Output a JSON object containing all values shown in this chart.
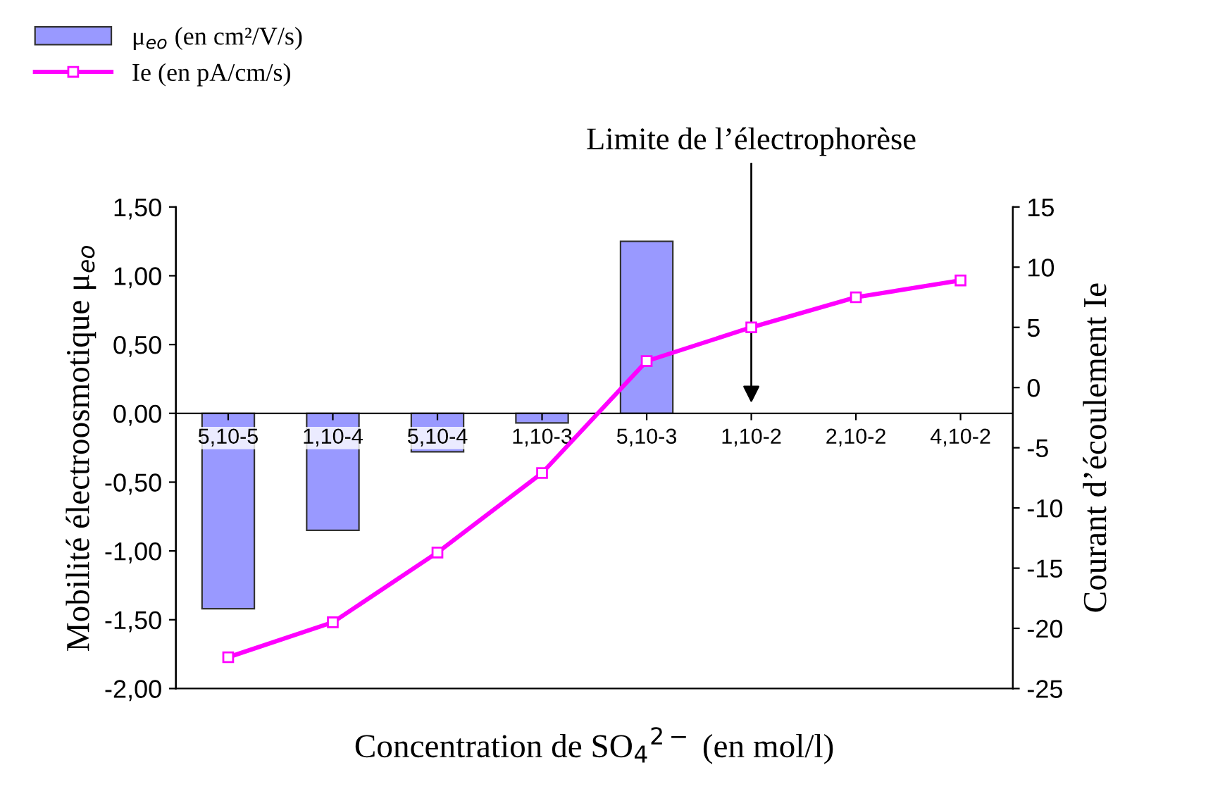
{
  "chart_data": {
    "type": "bar",
    "xlabel": "Concentration de SO$_{4}$$^{2−}$ (en mol/l)",
    "ylabel": "Mobilité électroosmotique μ$_{eo}$",
    "y2label": "Courant d’écoulement Ie",
    "categories": [
      "5,10-5",
      "1,10-4",
      "5,10-4",
      "1,10-3",
      "5,10-3",
      "1,10-2",
      "2,10-2",
      "4,10-2"
    ],
    "series": [
      {
        "name": "μ$_{eo}$ (en cm²/V/s)",
        "color": "#9999ff",
        "values": [
          -1.42,
          -0.85,
          -0.28,
          -0.07,
          1.25,
          null,
          null,
          null
        ]
      },
      {
        "name": "Ie (en pA/cm/s)",
        "type": "line",
        "axis": "y2",
        "color": "#ff00ff",
        "marker": "square",
        "line_style": "solid",
        "values": [
          -22.4,
          -19.5,
          -13.7,
          -7.1,
          2.2,
          5.0,
          7.5,
          8.9
        ]
      }
    ],
    "ylim": [
      -2,
      1.5
    ],
    "yticks": [
      {
        "value": -2,
        "label": "-2,00"
      },
      {
        "value": -1.5,
        "label": "-1,50"
      },
      {
        "value": -1,
        "label": "-1,00"
      },
      {
        "value": -0.5,
        "label": "-0,50"
      },
      {
        "value": 0,
        "label": "0,00"
      },
      {
        "value": 0.5,
        "label": "0,50"
      },
      {
        "value": 1,
        "label": "1,00"
      },
      {
        "value": 1.5,
        "label": "1,50"
      }
    ],
    "y2lim": [
      -25,
      15
    ],
    "y2ticks": [
      -25,
      -20,
      -15,
      -10,
      -5,
      0,
      5,
      10,
      15
    ],
    "annotations": [
      "Limite de l’électrophorèse"
    ],
    "legend": "top left",
    "grid": false
  }
}
